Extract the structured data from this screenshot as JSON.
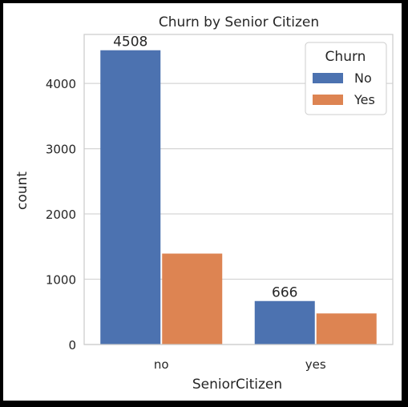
{
  "chart_data": {
    "type": "bar",
    "title": "Churn by Senior Citizen",
    "xlabel": "SeniorCitizen",
    "ylabel": "count",
    "categories": [
      "no",
      "yes"
    ],
    "series": [
      {
        "name": "No",
        "values": [
          4508,
          666
        ],
        "color": "#4c72b0"
      },
      {
        "name": "Yes",
        "values": [
          1393,
          476
        ],
        "color": "#dd8452"
      }
    ],
    "bar_labels": [
      {
        "series": 0,
        "category": 0,
        "text": "4508"
      },
      {
        "series": 0,
        "category": 1,
        "text": "666"
      }
    ],
    "ylim": [
      0,
      4750
    ],
    "yticks": [
      0,
      1000,
      2000,
      3000,
      4000
    ],
    "ytick_labels": [
      "0",
      "1000",
      "2000",
      "3000",
      "4000"
    ],
    "grid": true,
    "legend": {
      "title": "Churn",
      "position": "top-right"
    }
  }
}
